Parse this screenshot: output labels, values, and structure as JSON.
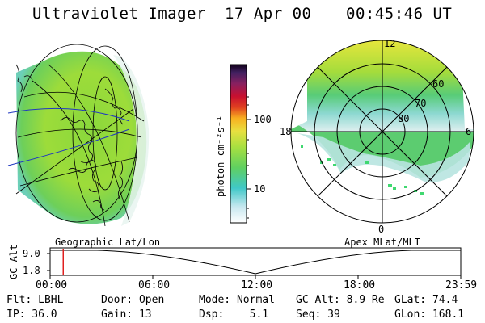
{
  "header": {
    "title": "Ultraviolet Imager",
    "date": "17 Apr 00",
    "time": "00:45:46 UT"
  },
  "colorbar": {
    "unit_label": "photon cm⁻²s⁻¹",
    "ticks": [
      "100",
      "10"
    ]
  },
  "polar_plot": {
    "mlt_labels": {
      "top": "12",
      "left": "18",
      "right": "6",
      "bottom": "0"
    },
    "lat_labels": [
      "60",
      "70",
      "80"
    ]
  },
  "timeline": {
    "left_title": "Geographic Lat/Lon",
    "right_title": "Apex MLat/MLT",
    "axis_label": "GC Alt",
    "y_ticks": [
      "9.0",
      "1.8"
    ],
    "x_ticks": [
      "00:00",
      "06:00",
      "12:00",
      "18:00",
      "23:59"
    ],
    "marker_time_fraction": 0.032
  },
  "footer": {
    "row1": [
      "Flt: LBHL",
      "Door: Open",
      "Mode: Normal",
      "GC Alt: 8.9 Re",
      "GLat: 74.4"
    ],
    "row2": [
      "IP: 36.0",
      "Gain: 13",
      "Dsp:    5.1",
      "Seq: 39",
      "GLon: 168.1"
    ]
  },
  "colors": {
    "aurora_green": "#7fd84a",
    "aurora_yellow": "#e8e63a",
    "aurora_cyan": "#4cc8c0",
    "marker_red": "#e02020",
    "globe_line_blue": "#2038c0"
  }
}
